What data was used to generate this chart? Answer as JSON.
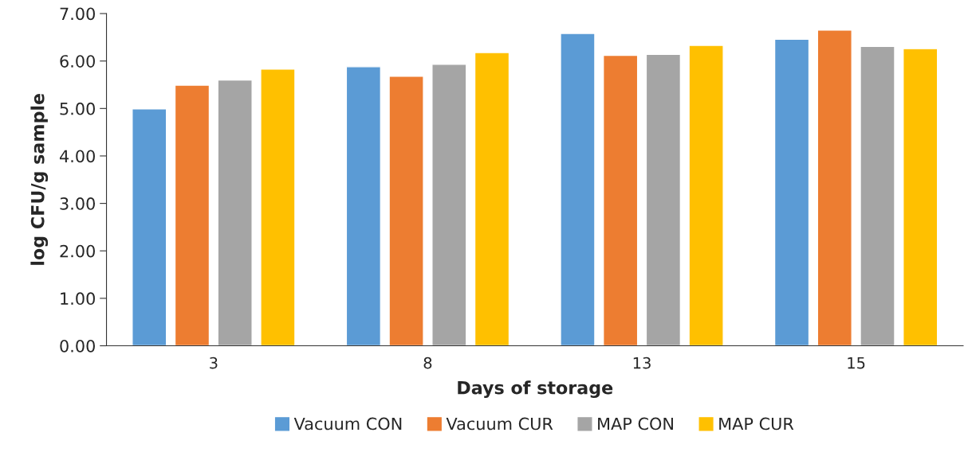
{
  "chart_data": {
    "type": "bar",
    "xlabel": "Days of storage",
    "ylabel": "log CFU/g sample",
    "categories": [
      "3",
      "8",
      "13",
      "15"
    ],
    "series": [
      {
        "name": "Vacuum CON",
        "color": "#5b9bd5",
        "values": [
          4.99,
          5.88,
          6.58,
          6.46
        ]
      },
      {
        "name": "Vacuum CUR",
        "color": "#ed7d31",
        "values": [
          5.49,
          5.68,
          6.12,
          6.65
        ]
      },
      {
        "name": "MAP CON",
        "color": "#a5a5a5",
        "values": [
          5.6,
          5.93,
          6.14,
          6.31
        ]
      },
      {
        "name": "MAP CUR",
        "color": "#ffc000",
        "values": [
          5.83,
          6.18,
          6.33,
          6.26
        ]
      }
    ],
    "ylim": [
      0,
      7
    ],
    "yticks": [
      {
        "value": 0,
        "label": "0.00"
      },
      {
        "value": 1,
        "label": "1.00"
      },
      {
        "value": 2,
        "label": "2.00"
      },
      {
        "value": 3,
        "label": "3.00"
      },
      {
        "value": 4,
        "label": "4.00"
      },
      {
        "value": 5,
        "label": "5.00"
      },
      {
        "value": 6,
        "label": "6.00"
      },
      {
        "value": 7,
        "label": "7.00"
      }
    ],
    "grid": false,
    "legend": "bottom"
  }
}
